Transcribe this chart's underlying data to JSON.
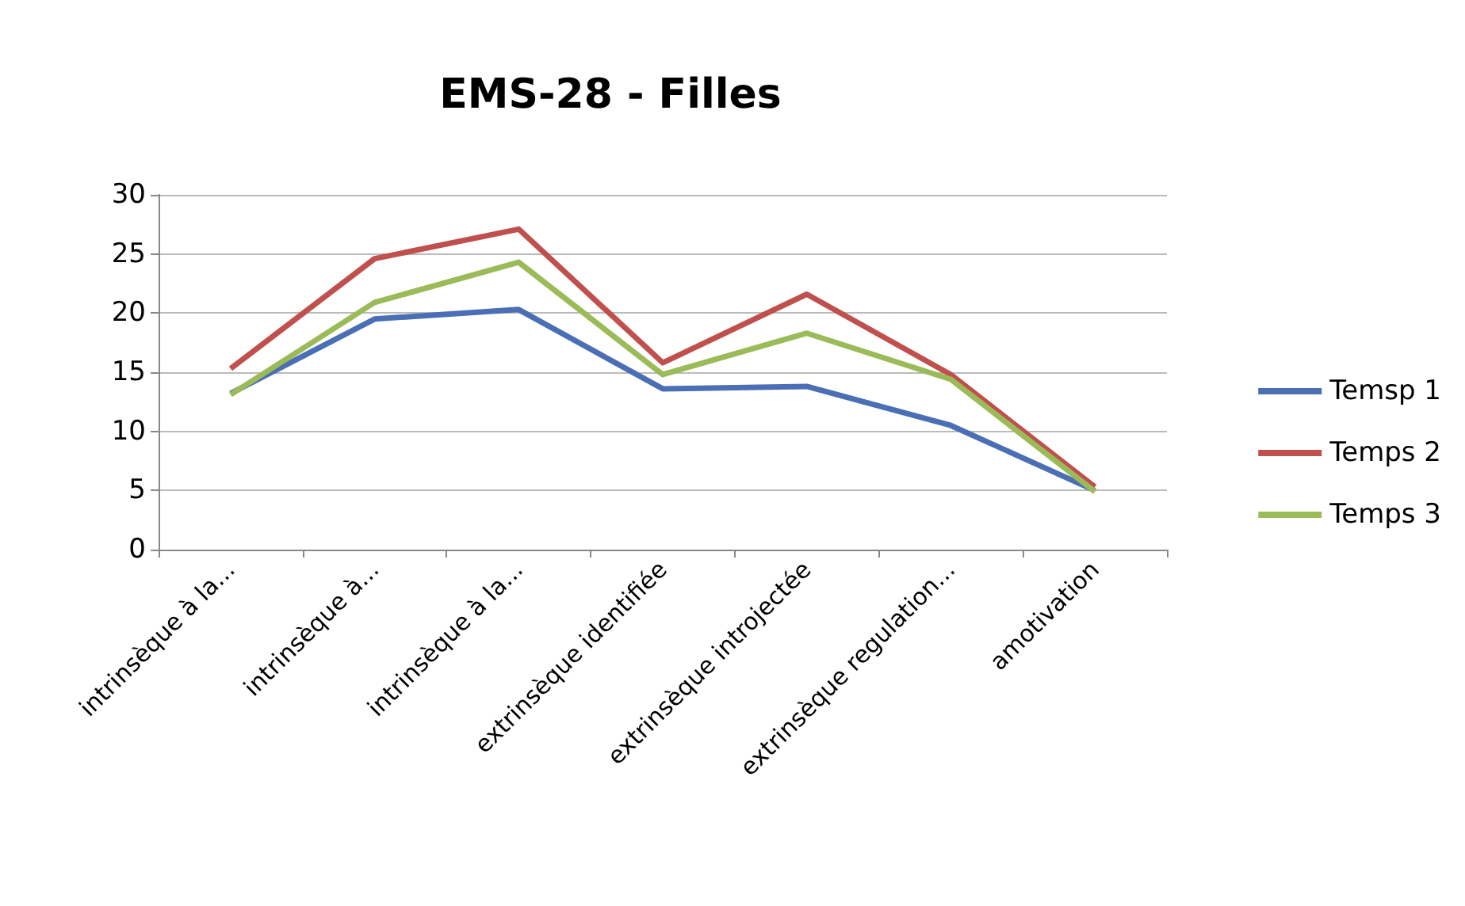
{
  "chart_data": {
    "type": "line",
    "title": "EMS-28 - Filles",
    "categories": [
      "intrinsèque à la...",
      "intrinsèque à...",
      "intrinsèque à la...",
      "extrinsèque identifiée",
      "extrinsèque introjectée",
      "extrinsèque regulation...",
      "amotivation"
    ],
    "series": [
      {
        "name": "Temsp 1",
        "color": "#4a6fb5",
        "values": [
          13.2,
          19.5,
          20.3,
          13.6,
          13.8,
          10.5,
          5.0
        ]
      },
      {
        "name": "Temps 2",
        "color": "#c0504d",
        "values": [
          15.3,
          24.6,
          27.1,
          15.8,
          21.6,
          14.8,
          5.3
        ]
      },
      {
        "name": "Temps 3",
        "color": "#9bbb59",
        "values": [
          13.1,
          20.9,
          24.3,
          14.8,
          18.3,
          14.4,
          4.9
        ]
      }
    ],
    "ylim": [
      0,
      30
    ],
    "yticks": [
      0,
      5,
      10,
      15,
      20,
      25,
      30
    ],
    "grid": "y",
    "legend": "right",
    "marker": "none"
  }
}
